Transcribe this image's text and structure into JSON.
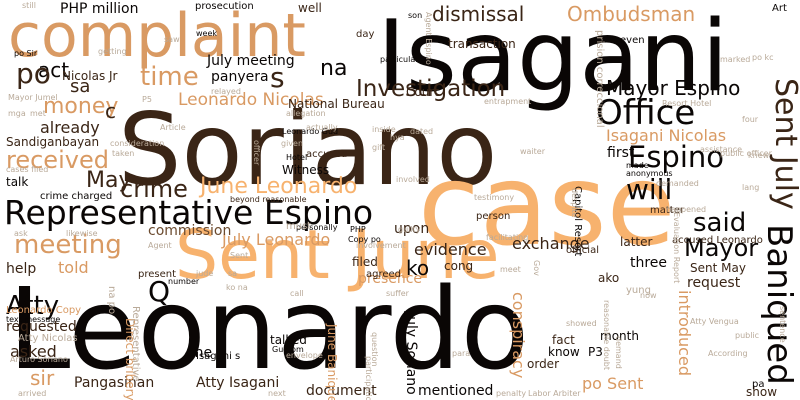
{
  "palette": {
    "dark": "#0a0605",
    "darkBrown": "#3a2516",
    "brown": "#6b4a2e",
    "lightTan": "#f7b26e",
    "tan": "#d99a63",
    "beige": "#e0b48d",
    "grey": "#b9aa99"
  },
  "words": [
    {
      "text": "Leonardo",
      "color": "dark"
    },
    {
      "text": "Isagani",
      "color": "dark"
    },
    {
      "text": "Soriano",
      "color": "darkBrown"
    },
    {
      "text": "case",
      "color": "lightTan"
    },
    {
      "text": "Sent June",
      "color": "lightTan"
    },
    {
      "text": "complaint",
      "color": "tan"
    },
    {
      "text": "Representative Espino",
      "color": "dark"
    },
    {
      "text": "Baniqued",
      "color": "dark"
    },
    {
      "text": "Office",
      "color": "dark"
    },
    {
      "text": "Sent July",
      "color": "darkBrown"
    },
    {
      "text": "Espino",
      "color": "dark"
    },
    {
      "text": "meeting",
      "color": "tan"
    },
    {
      "text": "Investigation",
      "color": "darkBrown"
    },
    {
      "text": "Mayor Espino",
      "color": "dark"
    },
    {
      "text": "Atty",
      "color": "dark"
    },
    {
      "text": "will",
      "color": "dark"
    },
    {
      "text": "said",
      "color": "dark"
    },
    {
      "text": "Mayor",
      "color": "dark"
    },
    {
      "text": "crime",
      "color": "darkBrown"
    },
    {
      "text": "June Leonardo",
      "color": "lightTan"
    },
    {
      "text": "time",
      "color": "tan"
    },
    {
      "text": "money",
      "color": "tan"
    },
    {
      "text": "received",
      "color": "tan"
    },
    {
      "text": "Ombudsman",
      "color": "tan"
    },
    {
      "text": "dismissal",
      "color": "darkBrown"
    },
    {
      "text": "Leonardo Nicolas",
      "color": "tan"
    },
    {
      "text": "Isagani Nicolas",
      "color": "tan"
    },
    {
      "text": "act",
      "color": "dark"
    },
    {
      "text": "po",
      "color": "darkBrown"
    },
    {
      "text": "na",
      "color": "dark"
    },
    {
      "text": "s",
      "color": "darkBrown"
    },
    {
      "text": "Q",
      "color": "dark"
    },
    {
      "text": "May",
      "color": "darkBrown"
    },
    {
      "text": "sa",
      "color": "darkBrown"
    },
    {
      "text": "sir",
      "color": "tan"
    },
    {
      "text": "ko",
      "color": "dark"
    },
    {
      "text": "PHP million",
      "color": "dark"
    },
    {
      "text": "July meeting",
      "color": "dark"
    },
    {
      "text": "July Leonardo",
      "color": "tan"
    },
    {
      "text": "commission",
      "color": "brown"
    },
    {
      "text": "exchange",
      "color": "darkBrown"
    },
    {
      "text": "evidence",
      "color": "darkBrown"
    },
    {
      "text": "already",
      "color": "darkBrown"
    },
    {
      "text": "told",
      "color": "tan"
    },
    {
      "text": "help",
      "color": "darkBrown"
    },
    {
      "text": "asked",
      "color": "darkBrown"
    },
    {
      "text": "requested",
      "color": "darkBrown"
    },
    {
      "text": "request",
      "color": "darkBrown"
    },
    {
      "text": "first",
      "color": "dark"
    },
    {
      "text": "introduced",
      "color": "tan"
    },
    {
      "text": "conspiracy",
      "color": "tan"
    },
    {
      "text": "mentioned",
      "color": "dark"
    },
    {
      "text": "document",
      "color": "darkBrown"
    },
    {
      "text": "Pangasinan",
      "color": "darkBrown"
    },
    {
      "text": "Atty Isagani",
      "color": "darkBrown"
    },
    {
      "text": "po Sent",
      "color": "tan"
    },
    {
      "text": "P3",
      "color": "dark"
    },
    {
      "text": "upon",
      "color": "darkBrown"
    },
    {
      "text": "three",
      "color": "dark"
    },
    {
      "text": "Sent May",
      "color": "darkBrown"
    },
    {
      "text": "latter",
      "color": "darkBrown"
    },
    {
      "text": "Sandiganbayan",
      "color": "darkBrown"
    },
    {
      "text": "talk",
      "color": "dark"
    },
    {
      "text": "c",
      "color": "darkBrown"
    },
    {
      "text": "panyera",
      "color": "dark"
    },
    {
      "text": "Nicolas Jr",
      "color": "darkBrown"
    },
    {
      "text": "National Bureau",
      "color": "darkBrown"
    },
    {
      "text": "Court",
      "color": "darkBrown"
    },
    {
      "text": "transaction",
      "color": "darkBrown"
    },
    {
      "text": "prosecution",
      "color": "dark"
    },
    {
      "text": "well",
      "color": "darkBrown"
    },
    {
      "text": "day",
      "color": "darkBrown"
    },
    {
      "text": "Art",
      "color": "dark"
    },
    {
      "text": "even",
      "color": "dark"
    },
    {
      "text": "Witness",
      "color": "dark"
    },
    {
      "text": "accused",
      "color": "darkBrown"
    },
    {
      "text": "crime charged",
      "color": "dark"
    },
    {
      "text": "one",
      "color": "dark"
    },
    {
      "text": "talked",
      "color": "dark"
    },
    {
      "text": "fact",
      "color": "darkBrown"
    },
    {
      "text": "know",
      "color": "dark"
    },
    {
      "text": "month",
      "color": "dark"
    },
    {
      "text": "order",
      "color": "darkBrown"
    },
    {
      "text": "Leonardo Copy",
      "color": "tan"
    },
    {
      "text": "Direct bribery",
      "color": "tan"
    },
    {
      "text": "July Soriano",
      "color": "dark"
    },
    {
      "text": "June Baniqued",
      "color": "tan"
    },
    {
      "text": "filed",
      "color": "darkBrown"
    },
    {
      "text": "presence",
      "color": "tan"
    },
    {
      "text": "cong",
      "color": "darkBrown"
    },
    {
      "text": "show",
      "color": "darkBrown"
    },
    {
      "text": "Mayor Jumel",
      "color": "grey"
    },
    {
      "text": "Atty Nicolas",
      "color": "grey"
    },
    {
      "text": "Capitol Resort",
      "color": "dark"
    },
    {
      "text": "accused Leonardo",
      "color": "darkBrown"
    },
    {
      "text": "Atty Vengua",
      "color": "grey"
    },
    {
      "text": "Evaluation Report",
      "color": "grey"
    },
    {
      "text": "beyond reasonable",
      "color": "darkBrown"
    },
    {
      "text": "Resort Hotel",
      "color": "grey"
    },
    {
      "text": "public officer",
      "color": "grey"
    },
    {
      "text": "still",
      "color": "grey"
    },
    {
      "text": "son",
      "color": "dark"
    },
    {
      "text": "week",
      "color": "dark"
    },
    {
      "text": "given",
      "color": "grey"
    },
    {
      "text": "allegation",
      "color": "grey"
    },
    {
      "text": "relayed",
      "color": "grey"
    },
    {
      "text": "entrapment",
      "color": "grey"
    },
    {
      "text": "marked",
      "color": "grey"
    },
    {
      "text": "po kc",
      "color": "grey"
    },
    {
      "text": "P5",
      "color": "grey"
    },
    {
      "text": "Article",
      "color": "grey"
    },
    {
      "text": "mga",
      "color": "grey"
    },
    {
      "text": "gift",
      "color": "grey"
    },
    {
      "text": "dated",
      "color": "grey"
    },
    {
      "text": "hya",
      "color": "grey"
    },
    {
      "text": "Gud pm",
      "color": "dark"
    },
    {
      "text": "ako",
      "color": "darkBrown"
    },
    {
      "text": "official",
      "color": "darkBrown"
    },
    {
      "text": "matter",
      "color": "darkBrown"
    },
    {
      "text": "demanded",
      "color": "grey"
    },
    {
      "text": "anonymous",
      "color": "dark"
    },
    {
      "text": "made",
      "color": "dark"
    },
    {
      "text": "yung",
      "color": "grey"
    },
    {
      "text": "suffer",
      "color": "grey"
    },
    {
      "text": "agreed",
      "color": "darkBrown"
    },
    {
      "text": "call",
      "color": "grey"
    },
    {
      "text": "person",
      "color": "darkBrown"
    },
    {
      "text": "testimony",
      "color": "grey"
    },
    {
      "text": "guilty",
      "color": "grey"
    },
    {
      "text": "Copy po",
      "color": "dark"
    },
    {
      "text": "number",
      "color": "dark"
    },
    {
      "text": "present",
      "color": "darkBrown"
    },
    {
      "text": "text message",
      "color": "dark"
    },
    {
      "text": "Hotel",
      "color": "dark"
    },
    {
      "text": "Isagani s",
      "color": "dark"
    },
    {
      "text": "ask",
      "color": "grey"
    },
    {
      "text": "likewise",
      "color": "grey"
    },
    {
      "text": "arrived",
      "color": "grey"
    },
    {
      "text": "next",
      "color": "grey"
    },
    {
      "text": "para",
      "color": "grey"
    },
    {
      "text": "showed",
      "color": "grey"
    },
    {
      "text": "penalty",
      "color": "grey"
    },
    {
      "text": "Labor Arbiter",
      "color": "grey"
    },
    {
      "text": "now",
      "color": "grey"
    },
    {
      "text": "pa",
      "color": "dark"
    },
    {
      "text": "public",
      "color": "grey"
    },
    {
      "text": "According",
      "color": "grey"
    },
    {
      "text": "lang",
      "color": "grey"
    },
    {
      "text": "knew",
      "color": "grey"
    },
    {
      "text": "happened",
      "color": "grey"
    },
    {
      "text": "ko na",
      "color": "grey"
    },
    {
      "text": "Arturo Soriano",
      "color": "grey"
    },
    {
      "text": "Representative",
      "color": "grey"
    },
    {
      "text": "na po",
      "color": "grey"
    },
    {
      "text": "envelope",
      "color": "grey"
    },
    {
      "text": "participation",
      "color": "grey"
    },
    {
      "text": "question",
      "color": "grey"
    },
    {
      "text": "Leonardo Gud",
      "color": "dark"
    },
    {
      "text": "actually",
      "color": "grey"
    },
    {
      "text": "inside",
      "color": "grey"
    },
    {
      "text": "personally",
      "color": "dark"
    },
    {
      "text": "must",
      "color": "grey"
    },
    {
      "text": "involved",
      "color": "grey"
    },
    {
      "text": "involvement",
      "color": "grey"
    },
    {
      "text": "facilitating",
      "color": "grey"
    },
    {
      "text": "waiter",
      "color": "grey"
    },
    {
      "text": "officer",
      "color": "grey"
    },
    {
      "text": "getting",
      "color": "grey"
    },
    {
      "text": "po Sir",
      "color": "dark"
    },
    {
      "text": "particular",
      "color": "dark"
    },
    {
      "text": "Agent Espino",
      "color": "grey"
    },
    {
      "text": "four",
      "color": "grey"
    },
    {
      "text": "assistance",
      "color": "grey"
    },
    {
      "text": "consideration",
      "color": "grey"
    },
    {
      "text": "taken",
      "color": "grey"
    },
    {
      "text": "cases filed",
      "color": "grey"
    },
    {
      "text": "prision correccional",
      "color": "grey"
    },
    {
      "text": "sentence",
      "color": "grey"
    },
    {
      "text": "despite",
      "color": "grey"
    },
    {
      "text": "Gov",
      "color": "grey"
    },
    {
      "text": "reasonable doubt",
      "color": "grey"
    },
    {
      "text": "demand",
      "color": "grey"
    },
    {
      "text": "met",
      "color": "grey"
    },
    {
      "text": "meet",
      "color": "grey"
    },
    {
      "text": "Agent",
      "color": "grey"
    },
    {
      "text": "saw",
      "color": "grey"
    },
    {
      "text": "PHP",
      "color": "dark"
    },
    {
      "text": "sa",
      "color": "grey"
    },
    {
      "text": "Sent",
      "color": "grey"
    },
    {
      "text": "jude",
      "color": "grey"
    }
  ]
}
